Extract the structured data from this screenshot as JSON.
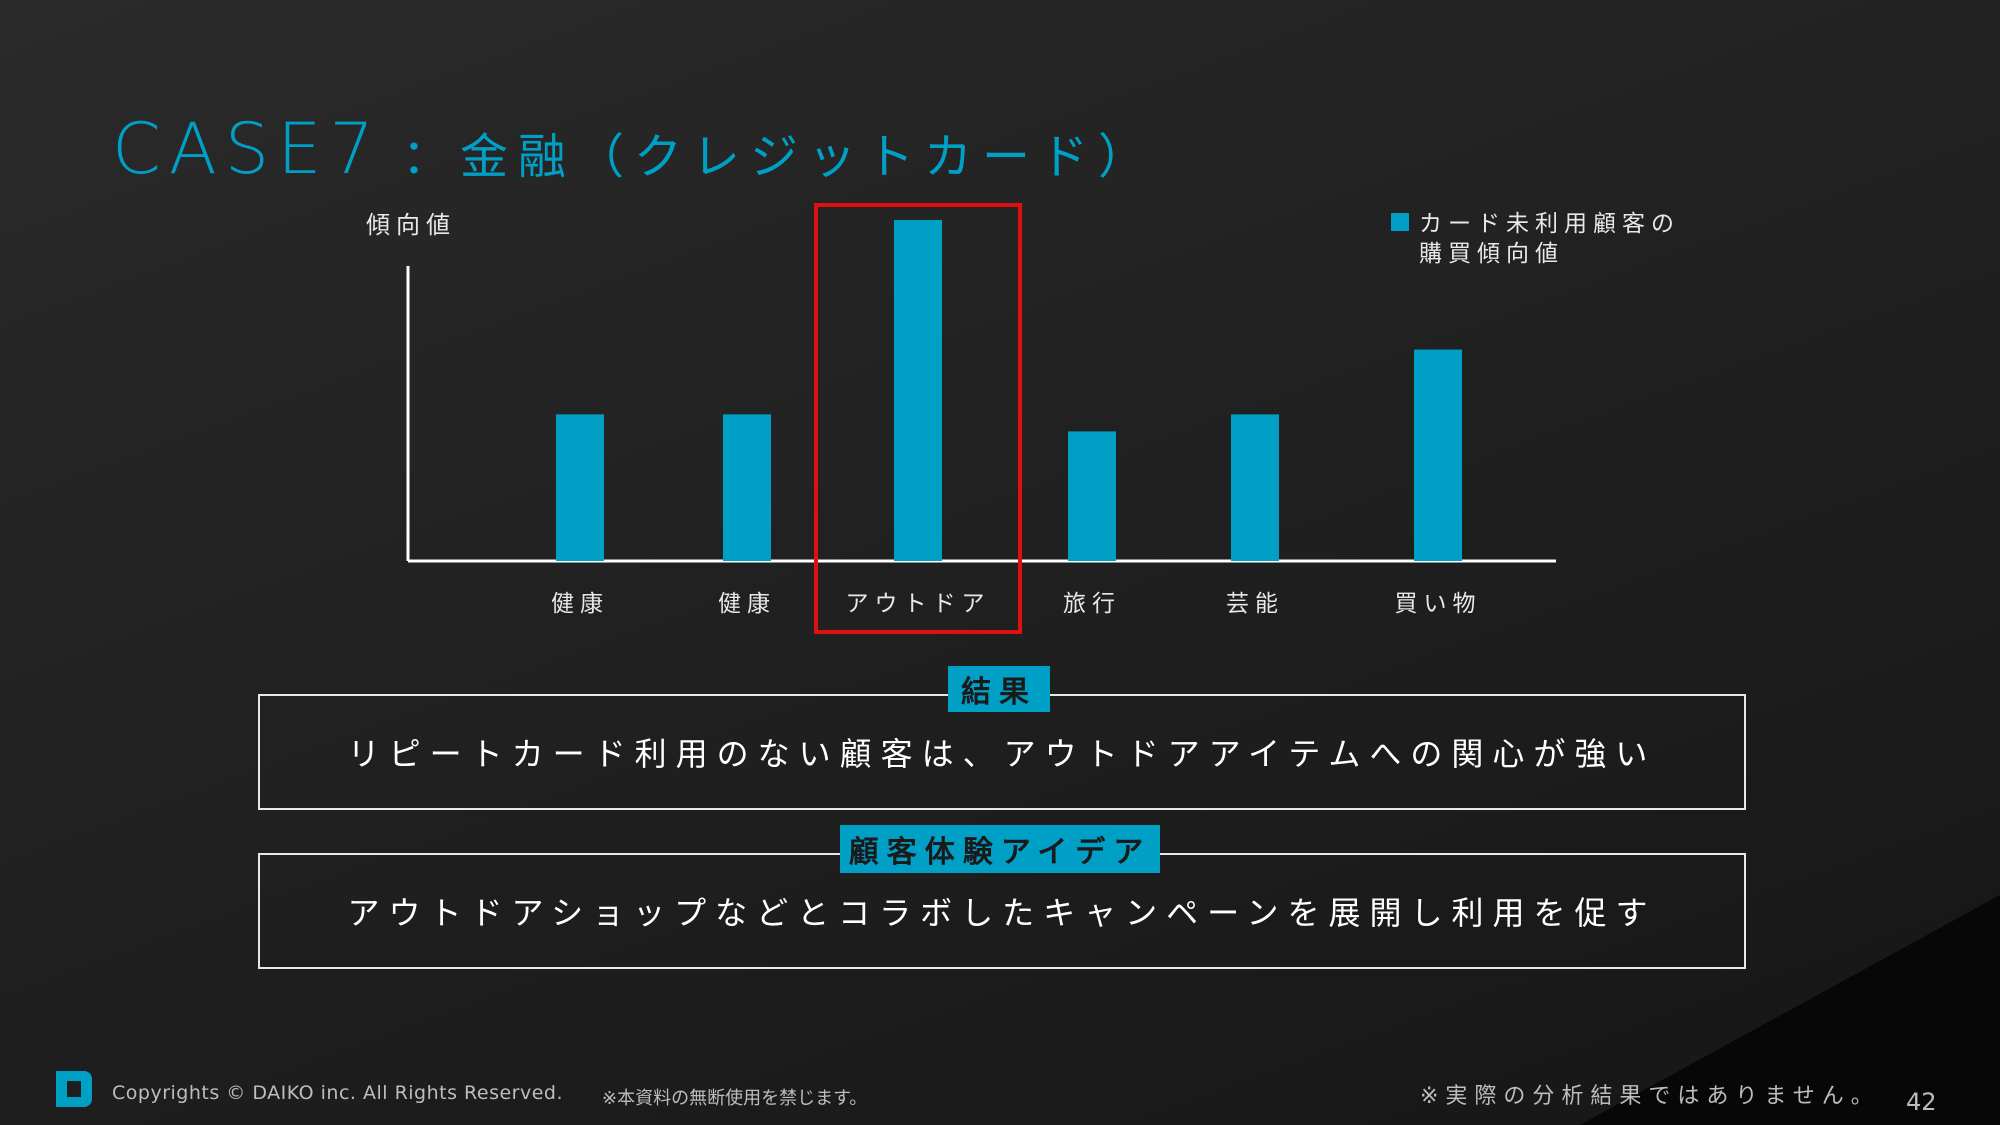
{
  "slide": {
    "title_case": "CASE7",
    "title_sub": "：金融（クレジットカード）",
    "result_label": "結果",
    "result_text": "リピートカード利用のない顧客は、アウトドアアイテムへの関心が強い",
    "idea_label": "顧客体験アイデア",
    "idea_text": "アウトドアショップなどとコラボしたキャンペーンを展開し利用を促す",
    "footer": {
      "copyright": "Copyrights © DAIKO inc. All Rights Reserved.",
      "notice": "※本資料の無断使用を禁じます。",
      "disclaimer": "※実際の分析結果ではありません。",
      "page_number": "42"
    }
  },
  "colors": {
    "accent": "#00a0c6",
    "highlight": "#e01010",
    "axis": "#ffffff"
  },
  "chart_data": {
    "type": "bar",
    "ylabel": "傾向値",
    "categories": [
      "健康",
      "健康",
      "アウトドア",
      "旅行",
      "芸能",
      "買い物"
    ],
    "series": [
      {
        "name": "カード未利用顧客の購買傾向値",
        "values": [
          43,
          43,
          100,
          38,
          43,
          62
        ]
      }
    ],
    "ylim": [
      0,
      100
    ],
    "grid": false,
    "legend_position": "top-right",
    "highlighted_category": "アウトドア"
  }
}
